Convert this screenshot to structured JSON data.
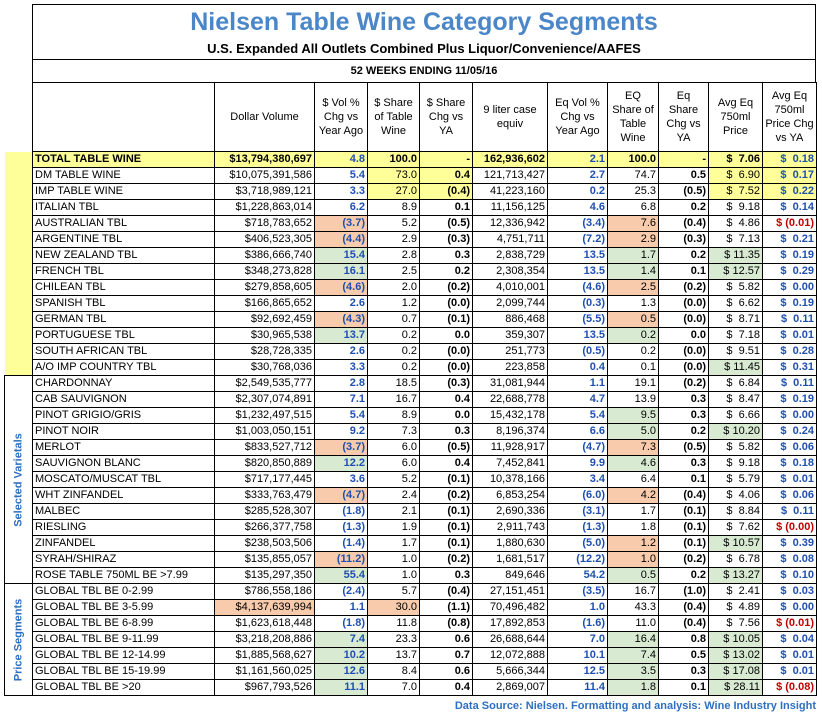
{
  "header": {
    "title": "Nielsen Table Wine Category Segments",
    "subtitle": "U.S. Expanded All Outlets Combined Plus Liquor/Convenience/AAFES",
    "period": "52 WEEKS ENDING 11/05/16"
  },
  "table": {
    "columns": [
      "Dollar Volume",
      "$ Vol % Chg vs Year Ago",
      "$ Share of Table Wine",
      "$ Share Chg vs YA",
      "9 liter case equiv",
      "Eq Vol % Chg vs Year Ago",
      "EQ Share of Table Wine",
      "Eq Share Chg vs YA",
      "Avg Eq 750ml Price",
      "Avg Eq 750ml Price Chg vs YA"
    ],
    "side_labels": [
      "Selected Varietals",
      "Price Segments"
    ],
    "rows": [
      [
        "TOTAL TABLE WINE",
        "$13,794,380,697",
        "4.8",
        "100.0",
        "-",
        "162,936,602",
        "2.1",
        "100.0",
        "-",
        "$  7.06",
        "$  0.18"
      ],
      [
        "DM TABLE WINE",
        "$10,075,391,586",
        "5.4",
        "73.0",
        "0.4",
        "121,713,427",
        "2.7",
        "74.7",
        "0.5",
        "$  6.90",
        "$  0.17"
      ],
      [
        "IMP TABLE WINE",
        "$3,718,989,121",
        "3.3",
        "27.0",
        "(0.4)",
        "41,223,160",
        "0.2",
        "25.3",
        "(0.5)",
        "$  7.52",
        "$  0.22"
      ],
      [
        "ITALIAN TBL",
        "$1,228,863,014",
        "6.2",
        "8.9",
        "0.1",
        "11,156,125",
        "4.6",
        "6.8",
        "0.2",
        "$  9.18",
        "$  0.14"
      ],
      [
        "AUSTRALIAN TBL",
        "$718,783,652",
        "(3.7)",
        "5.2",
        "(0.5)",
        "12,336,942",
        "(3.4)",
        "7.6",
        "(0.4)",
        "$  4.86",
        "$ (0.01)"
      ],
      [
        "ARGENTINE TBL",
        "$406,523,305",
        "(4.4)",
        "2.9",
        "(0.3)",
        "4,751,711",
        "(7.2)",
        "2.9",
        "(0.3)",
        "$  7.13",
        "$  0.21"
      ],
      [
        "NEW ZEALAND TBL",
        "$386,666,740",
        "15.4",
        "2.8",
        "0.3",
        "2,838,729",
        "13.5",
        "1.7",
        "0.2",
        "$ 11.35",
        "$  0.19"
      ],
      [
        "FRENCH TBL",
        "$348,273,828",
        "16.1",
        "2.5",
        "0.2",
        "2,308,354",
        "13.5",
        "1.4",
        "0.1",
        "$ 12.57",
        "$  0.29"
      ],
      [
        "CHILEAN TBL",
        "$279,858,605",
        "(4.6)",
        "2.0",
        "(0.2)",
        "4,010,001",
        "(4.6)",
        "2.5",
        "(0.2)",
        "$  5.82",
        "$  0.00"
      ],
      [
        "SPANISH TBL",
        "$166,865,652",
        "2.6",
        "1.2",
        "(0.0)",
        "2,099,744",
        "(0.3)",
        "1.3",
        "(0.0)",
        "$  6.62",
        "$  0.19"
      ],
      [
        "GERMAN TBL",
        "$92,692,459",
        "(4.3)",
        "0.7",
        "(0.1)",
        "886,468",
        "(5.5)",
        "0.5",
        "(0.0)",
        "$  8.71",
        "$  0.11"
      ],
      [
        "PORTUGUESE TBL",
        "$30,965,538",
        "13.7",
        "0.2",
        "0.0",
        "359,307",
        "13.5",
        "0.2",
        "0.0",
        "$  7.18",
        "$  0.01"
      ],
      [
        "SOUTH AFRICAN TBL",
        "$28,728,335",
        "2.6",
        "0.2",
        "(0.0)",
        "251,773",
        "(0.5)",
        "0.2",
        "(0.0)",
        "$  9.51",
        "$  0.28"
      ],
      [
        "A/O IMP COUNTRY TBL",
        "$30,768,036",
        "3.3",
        "0.2",
        "(0.0)",
        "223,858",
        "0.4",
        "0.1",
        "(0.0)",
        "$ 11.45",
        "$  0.31"
      ],
      [
        "CHARDONNAY",
        "$2,549,535,777",
        "2.8",
        "18.5",
        "(0.3)",
        "31,081,944",
        "1.1",
        "19.1",
        "(0.2)",
        "$  6.84",
        "$  0.11"
      ],
      [
        "CAB SAUVIGNON",
        "$2,307,074,891",
        "7.1",
        "16.7",
        "0.4",
        "22,688,778",
        "4.7",
        "13.9",
        "0.3",
        "$  8.47",
        "$  0.19"
      ],
      [
        "PINOT GRIGIO/GRIS",
        "$1,232,497,515",
        "5.4",
        "8.9",
        "0.0",
        "15,432,178",
        "5.4",
        "9.5",
        "0.3",
        "$  6.66",
        "$  0.00"
      ],
      [
        "PINOT NOIR",
        "$1,003,050,151",
        "9.2",
        "7.3",
        "0.3",
        "8,196,374",
        "6.6",
        "5.0",
        "0.2",
        "$ 10.20",
        "$  0.24"
      ],
      [
        "MERLOT",
        "$833,527,712",
        "(3.7)",
        "6.0",
        "(0.5)",
        "11,928,917",
        "(4.7)",
        "7.3",
        "(0.5)",
        "$  5.82",
        "$  0.06"
      ],
      [
        "SAUVIGNON BLANC",
        "$820,850,889",
        "12.2",
        "6.0",
        "0.4",
        "7,452,841",
        "9.9",
        "4.6",
        "0.3",
        "$  9.18",
        "$  0.18"
      ],
      [
        "MOSCATO/MUSCAT TBL",
        "$717,177,445",
        "3.6",
        "5.2",
        "(0.1)",
        "10,378,166",
        "3.4",
        "6.4",
        "0.1",
        "$  5.79",
        "$  0.01"
      ],
      [
        "WHT ZINFANDEL",
        "$333,763,479",
        "(4.7)",
        "2.4",
        "(0.2)",
        "6,853,254",
        "(6.0)",
        "4.2",
        "(0.4)",
        "$  4.06",
        "$  0.06"
      ],
      [
        "MALBEC",
        "$285,528,307",
        "(1.8)",
        "2.1",
        "(0.1)",
        "2,690,336",
        "(3.1)",
        "1.7",
        "(0.1)",
        "$  8.84",
        "$  0.11"
      ],
      [
        "RIESLING",
        "$266,377,758",
        "(1.3)",
        "1.9",
        "(0.1)",
        "2,911,743",
        "(1.3)",
        "1.8",
        "(0.1)",
        "$  7.62",
        "$ (0.00)"
      ],
      [
        "ZINFANDEL",
        "$238,503,506",
        "(1.4)",
        "1.7",
        "(0.1)",
        "1,880,630",
        "(5.0)",
        "1.2",
        "(0.1)",
        "$ 10.57",
        "$  0.39"
      ],
      [
        "SYRAH/SHIRAZ",
        "$135,855,057",
        "(11.2)",
        "1.0",
        "(0.2)",
        "1,681,517",
        "(12.2)",
        "1.0",
        "(0.2)",
        "$  6.78",
        "$  0.08"
      ],
      [
        "ROSE TABLE 750ML BE >7.99",
        "$135,297,350",
        "55.4",
        "1.0",
        "0.3",
        "849,646",
        "54.2",
        "0.5",
        "0.2",
        "$ 13.27",
        "$  0.10"
      ],
      [
        "GLOBAL TBL BE 0-2.99",
        "$786,558,186",
        "(2.4)",
        "5.7",
        "(0.4)",
        "27,151,451",
        "(3.5)",
        "16.7",
        "(1.0)",
        "$  2.41",
        "$  0.03"
      ],
      [
        "GLOBAL TBL BE 3-5.99",
        "$4,137,639,994",
        "1.1",
        "30.0",
        "(1.1)",
        "70,496,482",
        "1.0",
        "43.3",
        "(0.4)",
        "$  4.89",
        "$  0.00"
      ],
      [
        "GLOBAL TBL BE 6-8.99",
        "$1,623,618,448",
        "(1.8)",
        "11.8",
        "(0.8)",
        "17,892,853",
        "(1.6)",
        "11.0",
        "(0.4)",
        "$  7.56",
        "$ (0.01)"
      ],
      [
        "GLOBAL TBL BE 9-11.99",
        "$3,218,208,886",
        "7.4",
        "23.3",
        "0.6",
        "26,688,644",
        "7.0",
        "16.4",
        "0.8",
        "$ 10.05",
        "$  0.04"
      ],
      [
        "GLOBAL TBL BE 12-14.99",
        "$1,885,568,627",
        "10.2",
        "13.7",
        "0.7",
        "12,072,888",
        "10.1",
        "7.4",
        "0.5",
        "$ 13.02",
        "$  0.01"
      ],
      [
        "GLOBAL TBL BE 15-19.99",
        "$1,161,560,025",
        "12.6",
        "8.4",
        "0.6",
        "5,666,344",
        "12.5",
        "3.5",
        "0.3",
        "$ 17.08",
        "$  0.01"
      ],
      [
        "GLOBAL TBL BE >20",
        "$967,793,526",
        "11.1",
        "7.0",
        "0.4",
        "2,869,007",
        "11.4",
        "1.8",
        "0.1",
        "$ 28.11",
        "$ (0.08)"
      ]
    ]
  },
  "footer": "Data Source: Nielsen. Formatting and analysis: Wine Industry Insight"
}
